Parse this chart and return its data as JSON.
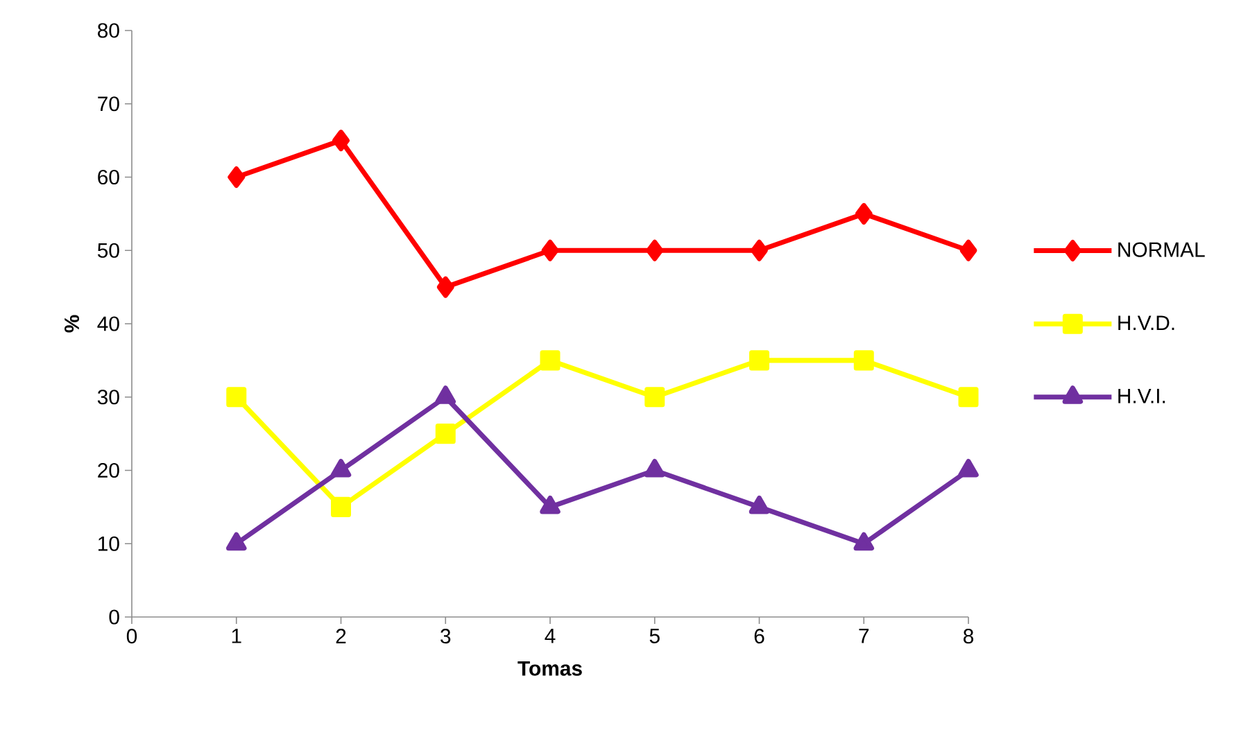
{
  "chart_data": {
    "type": "line",
    "xlabel": "Tomas",
    "ylabel": "%",
    "x": [
      1,
      2,
      3,
      4,
      5,
      6,
      7,
      8
    ],
    "xlim": [
      0,
      8
    ],
    "xticks": [
      0,
      1,
      2,
      3,
      4,
      5,
      6,
      7,
      8
    ],
    "ylim": [
      0,
      80
    ],
    "yticks": [
      0,
      10,
      20,
      30,
      40,
      50,
      60,
      70,
      80
    ],
    "grid": false,
    "legend": "right",
    "line_style": "solid",
    "series": [
      {
        "name": "NORMAL",
        "color": "#ff0000",
        "marker": "diamond",
        "values": [
          60,
          65,
          45,
          50,
          50,
          50,
          55,
          50
        ]
      },
      {
        "name": "H.V.D.",
        "color": "#ffff00",
        "marker": "square",
        "values": [
          30,
          15,
          25,
          35,
          30,
          35,
          35,
          30
        ]
      },
      {
        "name": "H.V.I.",
        "color": "#7030a0",
        "marker": "triangle",
        "values": [
          10,
          20,
          30,
          15,
          20,
          15,
          10,
          20
        ]
      }
    ]
  }
}
